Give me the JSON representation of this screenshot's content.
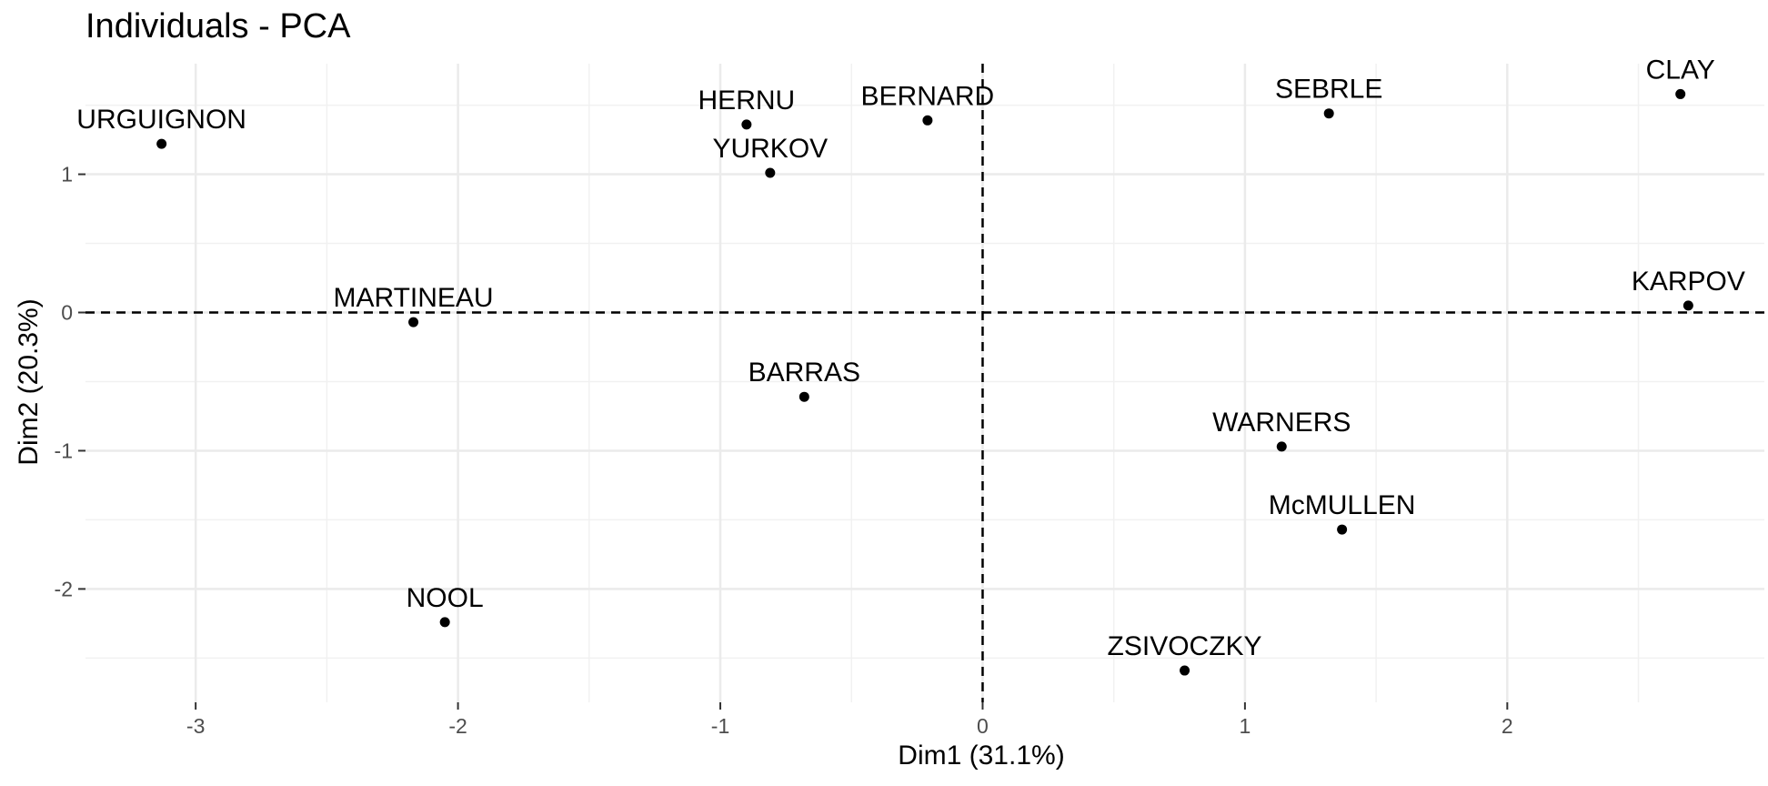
{
  "chart_data": {
    "type": "scatter",
    "title": "Individuals - PCA",
    "xlabel": "Dim1 (31.1%)",
    "ylabel": "Dim2 (20.3%)",
    "xlim": [
      -3.42,
      2.98
    ],
    "ylim": [
      -2.82,
      1.8
    ],
    "x_ticks": [
      -3,
      -2,
      -1,
      0,
      1,
      2
    ],
    "x_tick_labels": [
      "-3",
      "-2",
      "-1",
      "0",
      "1",
      "2"
    ],
    "y_ticks": [
      -2,
      -1,
      0,
      1
    ],
    "y_tick_labels": [
      "-2",
      "-1",
      "0",
      "1"
    ],
    "grid": true,
    "reference_lines": {
      "x": 0,
      "y": 0,
      "style": "dashed"
    },
    "points": [
      {
        "label": "URGUIGNON",
        "x": -3.13,
        "y": 1.22
      },
      {
        "label": "HERNU",
        "x": -0.9,
        "y": 1.36
      },
      {
        "label": "BERNARD",
        "x": -0.21,
        "y": 1.39
      },
      {
        "label": "YURKOV",
        "x": -0.81,
        "y": 1.01
      },
      {
        "label": "SEBRLE",
        "x": 1.32,
        "y": 1.44
      },
      {
        "label": "CLAY",
        "x": 2.66,
        "y": 1.58
      },
      {
        "label": "MARTINEAU",
        "x": -2.17,
        "y": -0.07
      },
      {
        "label": "KARPOV",
        "x": 2.69,
        "y": 0.05
      },
      {
        "label": "BARRAS",
        "x": -0.68,
        "y": -0.61
      },
      {
        "label": "WARNERS",
        "x": 1.14,
        "y": -0.97
      },
      {
        "label": "McMULLEN",
        "x": 1.37,
        "y": -1.57
      },
      {
        "label": "NOOL",
        "x": -2.05,
        "y": -2.24
      },
      {
        "label": "ZSIVOCZKY",
        "x": 0.77,
        "y": -2.59
      }
    ]
  }
}
